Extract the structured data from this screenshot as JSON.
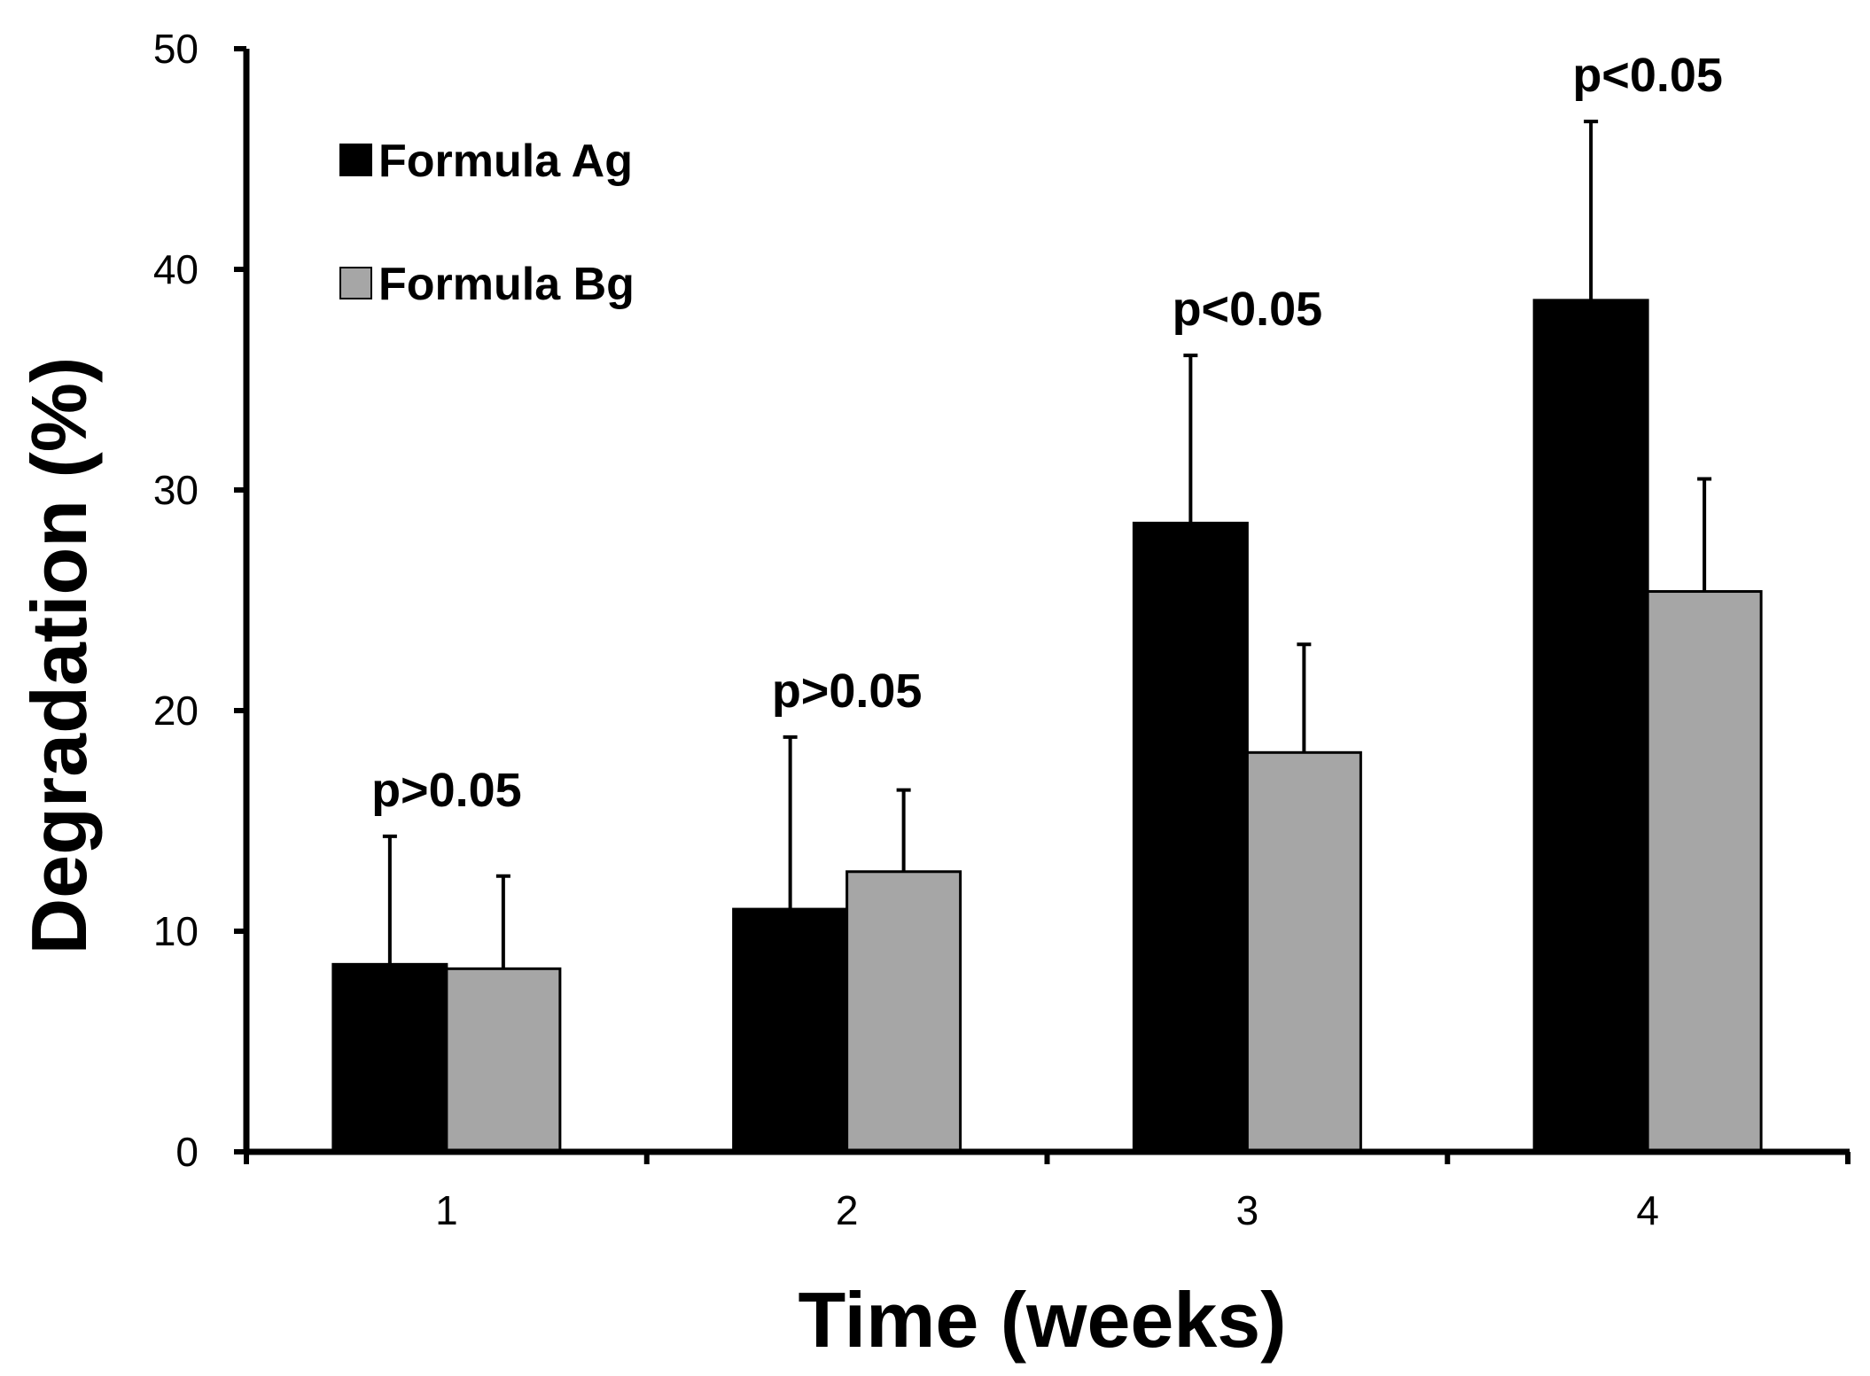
{
  "chart_data": {
    "type": "bar",
    "title": "",
    "xlabel": "Time (weeks)",
    "ylabel": "Degradation (%)",
    "ylim": [
      0,
      50
    ],
    "yticks": [
      "0",
      "10",
      "20",
      "30",
      "40",
      "50"
    ],
    "categories": [
      "1",
      "2",
      "3",
      "4"
    ],
    "series": [
      {
        "name": "Formula Ag",
        "color": "#000000",
        "values": [
          8.5,
          11.0,
          28.5,
          38.6
        ],
        "errors": [
          5.8,
          7.8,
          7.6,
          8.1
        ]
      },
      {
        "name": "Formula Bg",
        "color": "#a6a6a6",
        "values": [
          8.3,
          12.7,
          18.1,
          25.4
        ],
        "errors": [
          4.2,
          3.7,
          4.9,
          5.1
        ]
      }
    ],
    "annotations": [
      "p>0.05",
      "p>0.05",
      "p<0.05",
      "p<0.05"
    ],
    "legend_position": "top-left",
    "grid": false
  }
}
